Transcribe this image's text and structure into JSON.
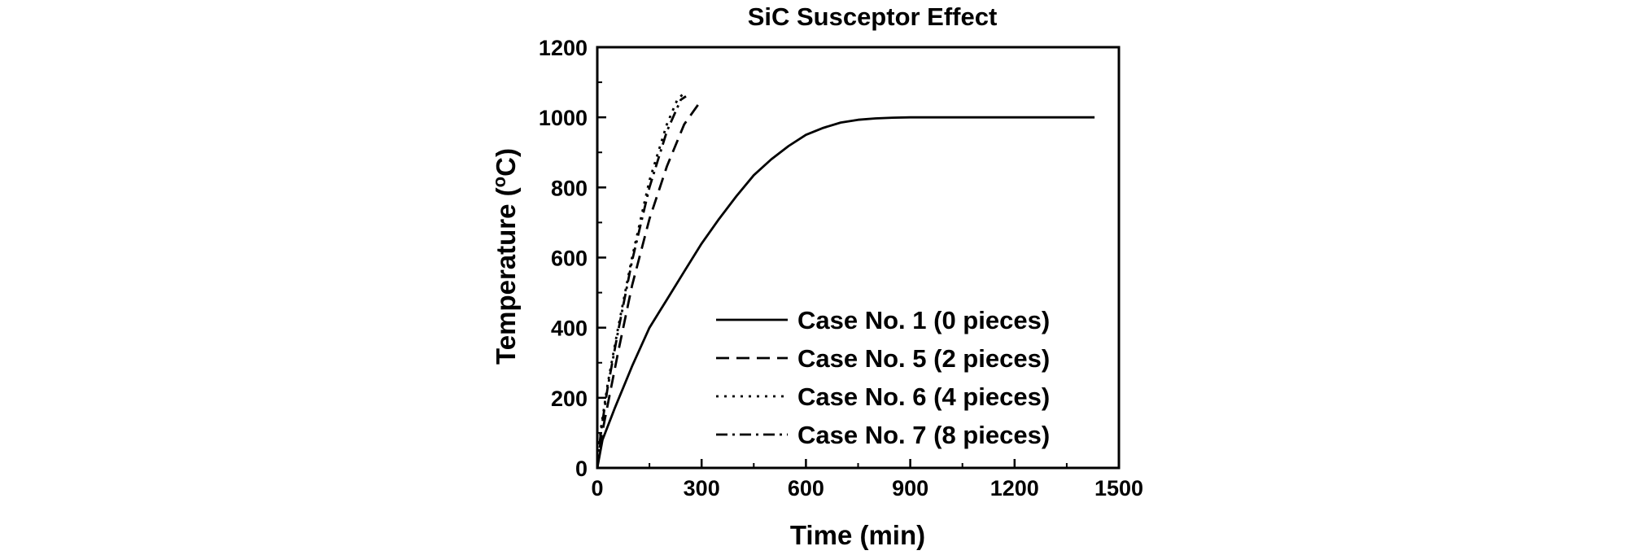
{
  "chart_data": {
    "type": "line",
    "title": "SiC Susceptor Effect",
    "xlabel": "Time (min)",
    "ylabel_main": "Temperature (",
    "ylabel_sup": "o",
    "ylabel_end": "C)",
    "xlim": [
      0,
      1500
    ],
    "ylim": [
      0,
      1200
    ],
    "xticks": [
      0,
      300,
      600,
      900,
      1200,
      1500
    ],
    "yticks": [
      0,
      200,
      400,
      600,
      800,
      1000,
      1200
    ],
    "legend_position": "bottom-right",
    "grid": false,
    "series": [
      {
        "name": "Case No. 1 (0 pieces)",
        "style": "solid",
        "x": [
          0,
          15,
          50,
          100,
          150,
          200,
          250,
          300,
          350,
          400,
          450,
          500,
          550,
          600,
          650,
          700,
          750,
          800,
          850,
          900,
          950,
          1000,
          1100,
          1200,
          1300,
          1430
        ],
        "y": [
          0,
          80,
          170,
          290,
          400,
          480,
          560,
          640,
          710,
          775,
          835,
          880,
          918,
          950,
          970,
          985,
          993,
          997,
          999,
          1000,
          1000,
          1000,
          1000,
          1000,
          1000,
          1000
        ]
      },
      {
        "name": "Case No. 5 (2 pieces)",
        "style": "dashed",
        "x": [
          0,
          10,
          30,
          60,
          100,
          150,
          200,
          250,
          300
        ],
        "y": [
          0,
          80,
          180,
          330,
          520,
          710,
          860,
          980,
          1050
        ]
      },
      {
        "name": "Case No. 6 (4 pieces)",
        "style": "dotted",
        "x": [
          0,
          10,
          30,
          60,
          100,
          150,
          200,
          230,
          245
        ],
        "y": [
          0,
          110,
          240,
          400,
          600,
          820,
          980,
          1050,
          1065
        ]
      },
      {
        "name": "Case No. 7 (8 pieces)",
        "style": "dash-dot",
        "x": [
          0,
          10,
          30,
          60,
          100,
          150,
          200,
          240,
          255
        ],
        "y": [
          0,
          100,
          230,
          390,
          590,
          800,
          960,
          1050,
          1060
        ]
      }
    ]
  }
}
